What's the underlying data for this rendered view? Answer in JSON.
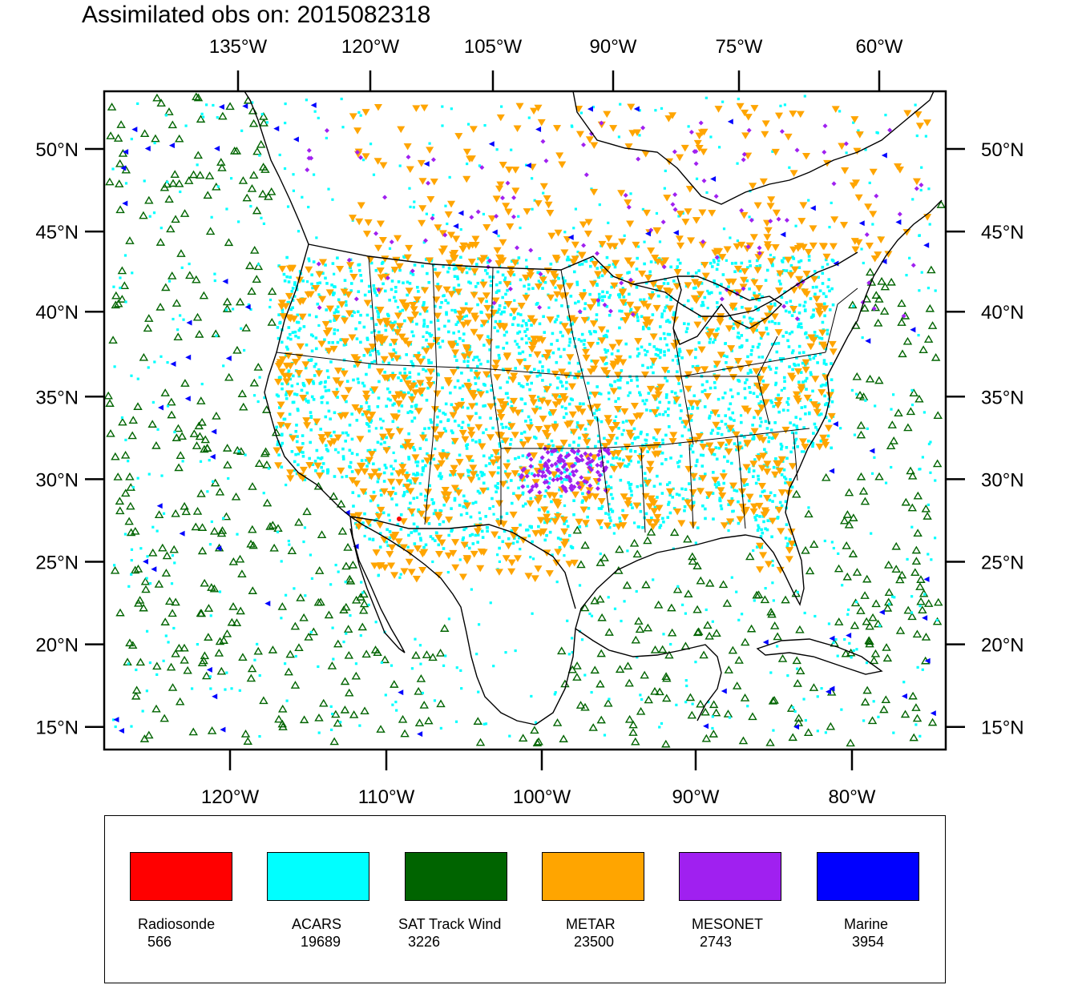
{
  "title": "Assimilated obs on: 2015082318",
  "map": {
    "projection": "lambert-conformal",
    "top_lon_ticks": [
      "135°W",
      "120°W",
      "105°W",
      "90°W",
      "75°W",
      "60°W"
    ],
    "bottom_lon_ticks": [
      "120°W",
      "110°W",
      "100°W",
      "90°W",
      "80°W"
    ],
    "lat_ticks": [
      "50°N",
      "45°N",
      "40°N",
      "35°N",
      "30°N",
      "25°N",
      "20°N",
      "15°N"
    ],
    "lat_values": [
      50,
      45,
      40,
      35,
      30,
      25,
      20,
      15
    ],
    "bottom_lon_values": [
      -120,
      -110,
      -100,
      -90,
      -80
    ],
    "top_lon_values": [
      -135,
      -120,
      -105,
      -90,
      -75,
      -60
    ],
    "extent": {
      "lon_min": -125.5,
      "lon_max": -73.5,
      "lat_min": 14,
      "lat_max": 52
    }
  },
  "legend": [
    {
      "name": "Radiosonde",
      "count": "566",
      "color": "#ff0000",
      "marker": "circle"
    },
    {
      "name": "ACARS",
      "count": "19689",
      "color": "#00ffff",
      "marker": "square"
    },
    {
      "name": "SAT Track Wind",
      "count": "3226",
      "color": "#006400",
      "marker": "triangle-up-hollow"
    },
    {
      "name": "METAR",
      "count": "23500",
      "color": "#ffa500",
      "marker": "triangle-down"
    },
    {
      "name": "MESONET",
      "count": "2743",
      "color": "#a020f0",
      "marker": "diamond"
    },
    {
      "name": "Marine",
      "count": "3954",
      "color": "#0000ff",
      "marker": "triangle-left"
    }
  ]
}
